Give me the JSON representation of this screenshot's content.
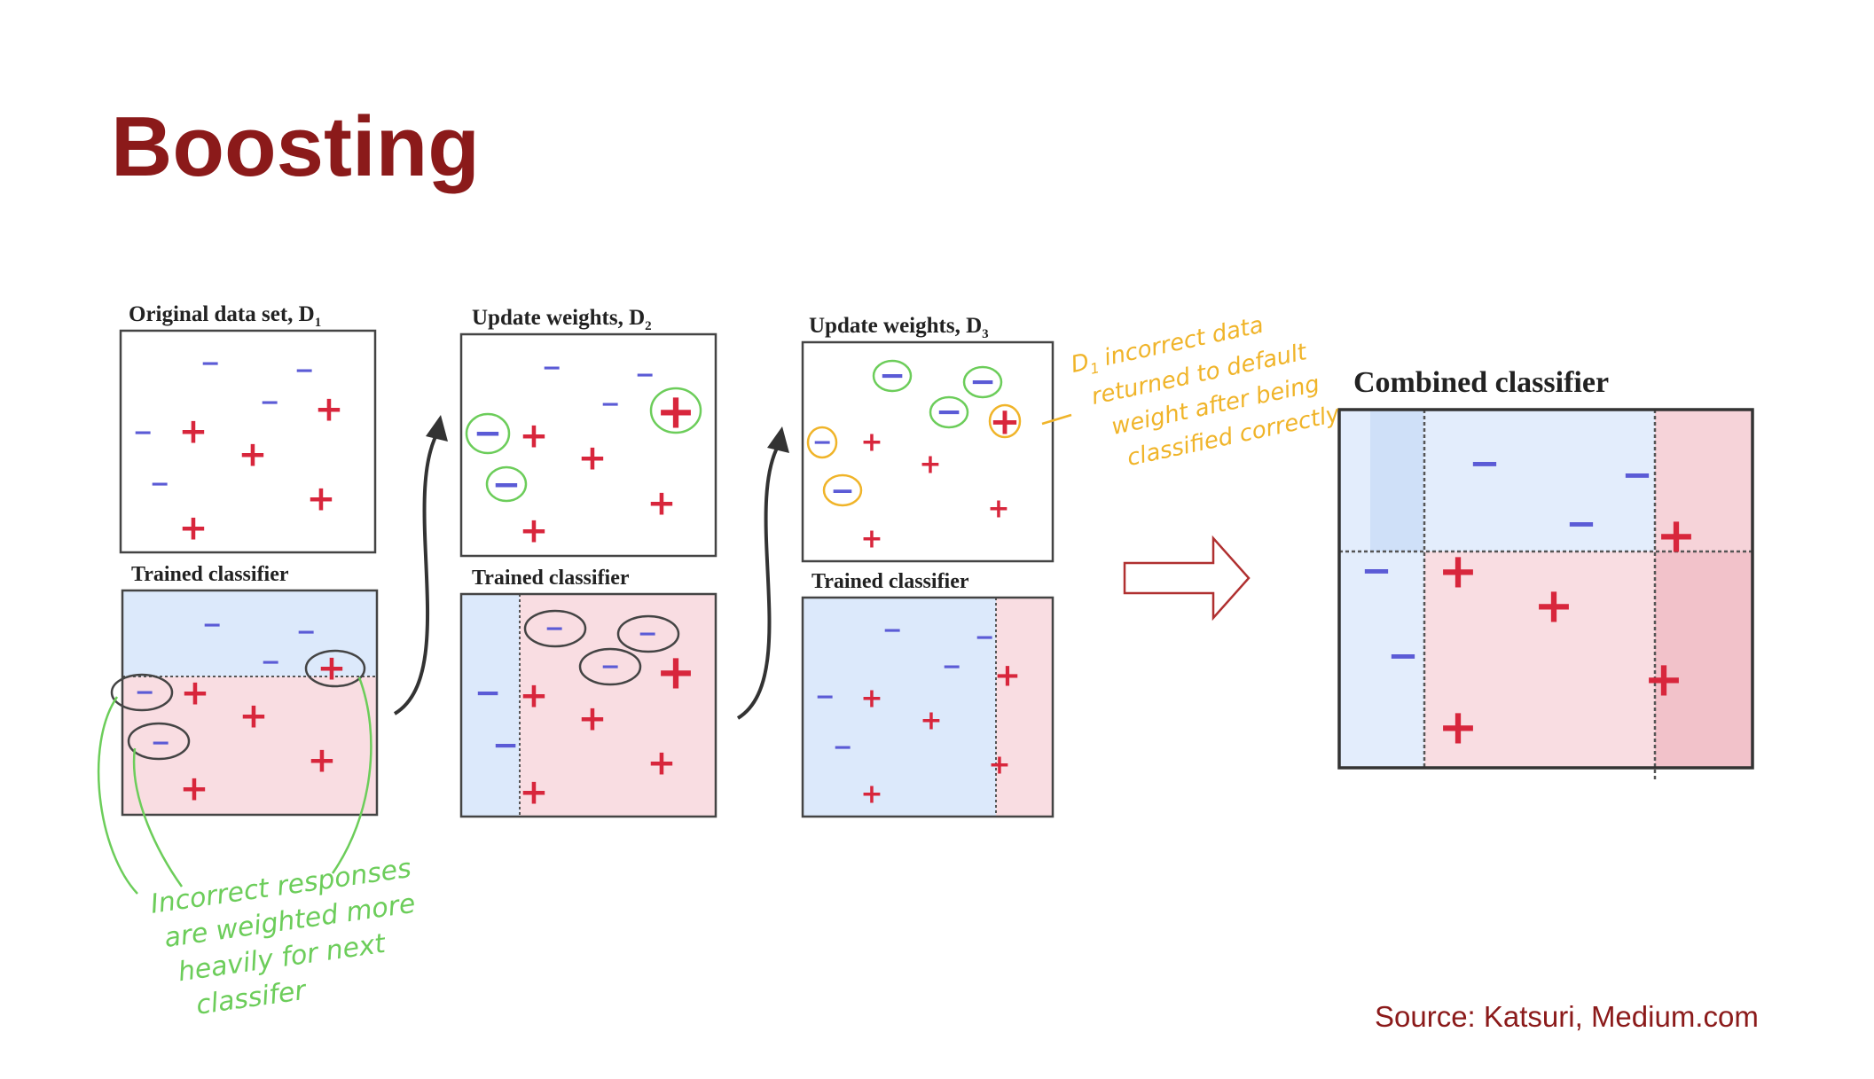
{
  "title": "Boosting",
  "source": "Source: Katsuri, Medium.com",
  "panels": {
    "d1_title": "Original data set,",
    "d2_title": "Update weights,",
    "d3_title": "Update weights,",
    "d_letter": "D",
    "d1_sub": "1",
    "d2_sub": "2",
    "d3_sub": "3",
    "trained_classifier": "Trained classifier",
    "combined_classifier": "Combined classifier"
  },
  "symbols": {
    "minus": "−",
    "plus": "+"
  },
  "annotations": {
    "green_note": [
      "Incorrect responses",
      "are weighted more",
      "heavily for next",
      "classifer"
    ],
    "yellow_note": [
      "D",
      "incorrect data",
      "returned to default",
      "weight after being",
      "classified correctly"
    ],
    "yellow_note_sub": "1"
  },
  "colors": {
    "title": "#8b1a1a",
    "plus": "#d8263c",
    "minus": "#5b5bd6",
    "region_blue": "#dce9fb",
    "region_pink": "#f9dde2",
    "green_ink": "#6ccd5a",
    "yellow_ink": "#f0b429",
    "arrow_outline": "#b03030"
  }
}
